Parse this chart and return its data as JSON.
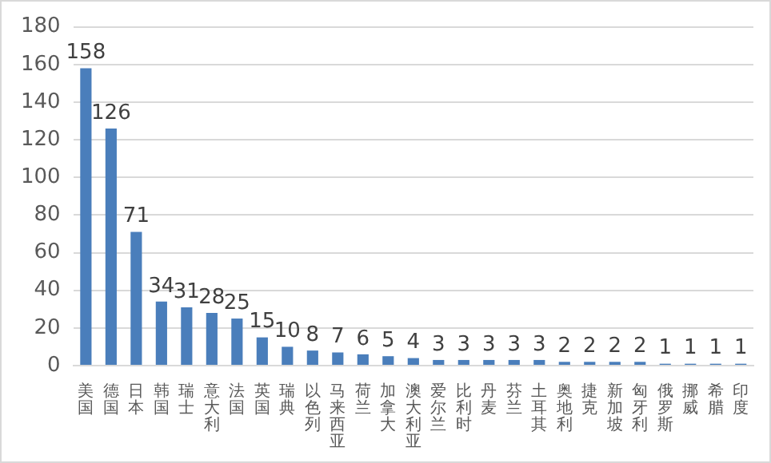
{
  "chart_data": {
    "type": "bar",
    "categories": [
      "美国",
      "德国",
      "日本",
      "韩国",
      "瑞士",
      "意大利",
      "法国",
      "英国",
      "瑞典",
      "以色列",
      "马来西亚",
      "荷兰",
      "加拿大",
      "澳大利亚",
      "爱尔兰",
      "比利时",
      "丹麦",
      "芬兰",
      "土耳其",
      "奥地利",
      "捷克",
      "新加坡",
      "匈牙利",
      "俄罗斯",
      "挪威",
      "希腊",
      "印度"
    ],
    "values": [
      158,
      126,
      71,
      34,
      31,
      28,
      25,
      15,
      10,
      8,
      7,
      6,
      5,
      4,
      3,
      3,
      3,
      3,
      3,
      2,
      2,
      2,
      2,
      1,
      1,
      1,
      1
    ],
    "color": "#4a7ebb",
    "ylim": [
      0,
      180
    ],
    "yticks": [
      0,
      20,
      40,
      60,
      80,
      100,
      120,
      140,
      160,
      180
    ],
    "grid": "y",
    "data_labels": true
  }
}
